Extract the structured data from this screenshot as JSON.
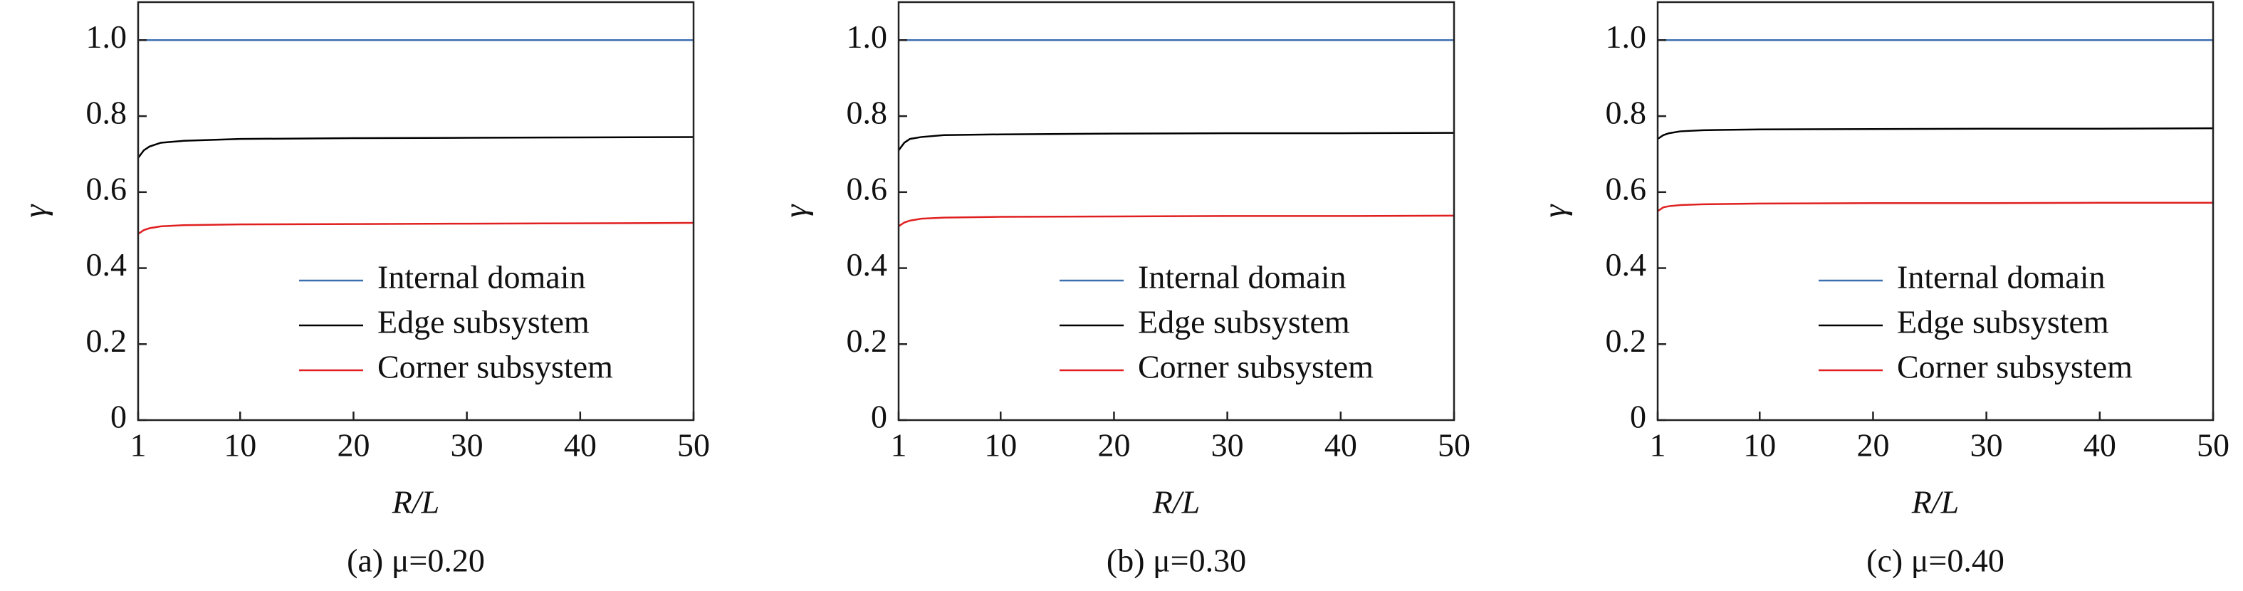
{
  "chart_data": [
    {
      "type": "line",
      "caption": "(a) μ=0.20",
      "xlabel": "R/L",
      "ylabel": "γ",
      "x": [
        1,
        1.5,
        2,
        3,
        5,
        10,
        20,
        30,
        40,
        50
      ],
      "series": [
        {
          "name": "Internal domain",
          "color": "#3a6fb0",
          "values": [
            1,
            1,
            1,
            1,
            1,
            1,
            1,
            1,
            1,
            1
          ]
        },
        {
          "name": "Edge subsystem",
          "color": "#000000",
          "values": [
            0.69,
            0.71,
            0.72,
            0.73,
            0.735,
            0.74,
            0.742,
            0.743,
            0.744,
            0.745
          ]
        },
        {
          "name": "Corner subsystem",
          "color": "#e02020",
          "values": [
            0.49,
            0.5,
            0.505,
            0.51,
            0.513,
            0.515,
            0.516,
            0.517,
            0.518,
            0.519
          ]
        }
      ],
      "xlim": [
        1,
        50
      ],
      "ylim": [
        0,
        1.1
      ],
      "xticks": [
        1,
        10,
        20,
        30,
        40,
        50
      ],
      "yticks": [
        0,
        0.2,
        0.4,
        0.6,
        0.8,
        {
          "value": 1,
          "label": "1.0"
        }
      ],
      "legend": "lower right"
    },
    {
      "type": "line",
      "caption": "(b) μ=0.30",
      "xlabel": "R/L",
      "ylabel": "γ",
      "x": [
        1,
        1.5,
        2,
        3,
        5,
        10,
        20,
        30,
        40,
        50
      ],
      "series": [
        {
          "name": "Internal domain",
          "color": "#3a6fb0",
          "values": [
            1,
            1,
            1,
            1,
            1,
            1,
            1,
            1,
            1,
            1
          ]
        },
        {
          "name": "Edge subsystem",
          "color": "#000000",
          "values": [
            0.71,
            0.73,
            0.74,
            0.745,
            0.75,
            0.752,
            0.754,
            0.755,
            0.755,
            0.756
          ]
        },
        {
          "name": "Corner subsystem",
          "color": "#e02020",
          "values": [
            0.51,
            0.52,
            0.525,
            0.53,
            0.533,
            0.535,
            0.536,
            0.537,
            0.537,
            0.538
          ]
        }
      ],
      "xlim": [
        1,
        50
      ],
      "ylim": [
        0,
        1.1
      ],
      "xticks": [
        1,
        10,
        20,
        30,
        40,
        50
      ],
      "yticks": [
        0,
        0.2,
        0.4,
        0.6,
        0.8,
        {
          "value": 1,
          "label": "1.0"
        }
      ],
      "legend": "lower right"
    },
    {
      "type": "line",
      "caption": "(c) μ=0.40",
      "xlabel": "R/L",
      "ylabel": "γ",
      "x": [
        1,
        1.5,
        2,
        3,
        5,
        10,
        20,
        30,
        40,
        50
      ],
      "series": [
        {
          "name": "Internal domain",
          "color": "#3a6fb0",
          "values": [
            1,
            1,
            1,
            1,
            1,
            1,
            1,
            1,
            1,
            1
          ]
        },
        {
          "name": "Edge subsystem",
          "color": "#000000",
          "values": [
            0.74,
            0.75,
            0.755,
            0.76,
            0.763,
            0.765,
            0.766,
            0.767,
            0.767,
            0.768
          ]
        },
        {
          "name": "Corner subsystem",
          "color": "#e02020",
          "values": [
            0.55,
            0.56,
            0.563,
            0.566,
            0.568,
            0.57,
            0.571,
            0.571,
            0.572,
            0.572
          ]
        }
      ],
      "xlim": [
        1,
        50
      ],
      "ylim": [
        0,
        1.1
      ],
      "xticks": [
        1,
        10,
        20,
        30,
        40,
        50
      ],
      "yticks": [
        0,
        0.2,
        0.4,
        0.6,
        0.8,
        {
          "value": 1,
          "label": "1.0"
        }
      ],
      "legend": "lower right"
    }
  ]
}
